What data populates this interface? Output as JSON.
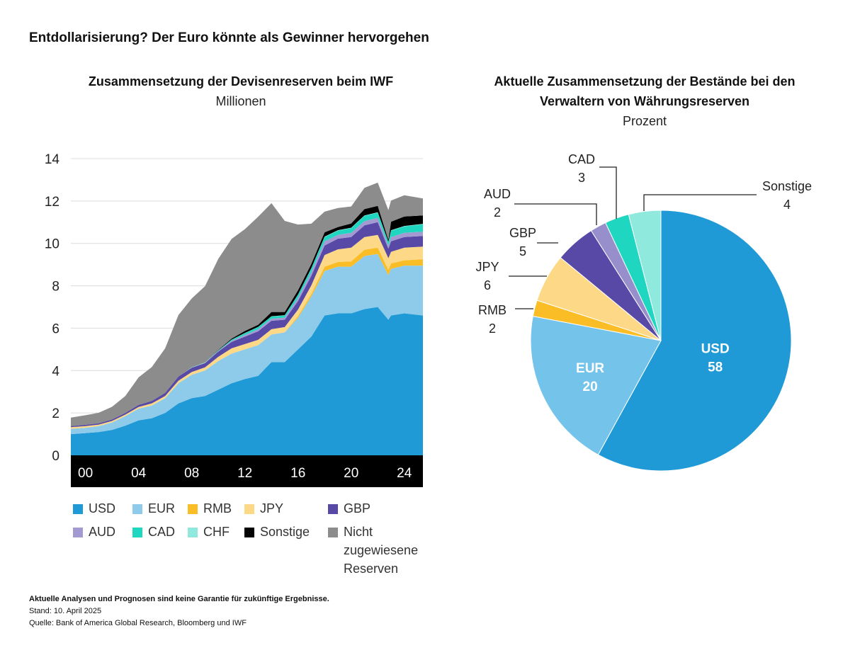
{
  "title": "Entdollarisierung? Der Euro könnte als Gewinner hervorgehen",
  "chart_data": [
    {
      "type": "area",
      "stacked": true,
      "title": "Zusammensetzung der Devisenreserven beim IWF",
      "subtitle": "Millionen",
      "ylim": [
        0,
        14
      ],
      "yticks": [
        "0",
        "2",
        "4",
        "6",
        "8",
        "10",
        "12",
        "14"
      ],
      "xlim": [
        1998.9,
        2025.4
      ],
      "xticks": [
        {
          "value": 2000,
          "label": "00"
        },
        {
          "value": 2004,
          "label": "04"
        },
        {
          "value": 2008,
          "label": "08"
        },
        {
          "value": 2012,
          "label": "12"
        },
        {
          "value": 2016,
          "label": "16"
        },
        {
          "value": 2020,
          "label": "20"
        },
        {
          "value": 2024,
          "label": "24"
        }
      ],
      "grid": true,
      "legend_position": "bottom",
      "x": [
        1999,
        2000,
        2001,
        2002,
        2003,
        2004,
        2005,
        2006,
        2007,
        2008,
        2009,
        2010,
        2011,
        2012,
        2013,
        2014,
        2015,
        2016,
        2017,
        2018,
        2019,
        2020,
        2021,
        2022,
        2022.8,
        2023,
        2024,
        2025
      ],
      "series": [
        {
          "name": "USD",
          "color": "#1f9ad6",
          "values": [
            1.0,
            1.05,
            1.1,
            1.2,
            1.4,
            1.65,
            1.75,
            2.0,
            2.45,
            2.7,
            2.8,
            3.1,
            3.4,
            3.6,
            3.75,
            4.4,
            4.4,
            5.0,
            5.6,
            6.6,
            6.7,
            6.7,
            6.9,
            7.0,
            6.4,
            6.6,
            6.7,
            6.6
          ]
        },
        {
          "name": "EUR",
          "color": "#8ecbea",
          "values": [
            0.25,
            0.25,
            0.28,
            0.35,
            0.45,
            0.55,
            0.6,
            0.7,
            0.95,
            1.1,
            1.2,
            1.35,
            1.4,
            1.4,
            1.45,
            1.3,
            1.4,
            1.5,
            1.9,
            2.1,
            2.2,
            2.2,
            2.5,
            2.5,
            2.1,
            2.2,
            2.25,
            2.35
          ]
        },
        {
          "name": "RMB",
          "color": "#fbbd26",
          "values": [
            0,
            0,
            0,
            0,
            0,
            0,
            0,
            0,
            0,
            0,
            0,
            0,
            0,
            0,
            0,
            0,
            0,
            0.08,
            0.12,
            0.2,
            0.22,
            0.25,
            0.3,
            0.3,
            0.25,
            0.25,
            0.25,
            0.3
          ]
        },
        {
          "name": "JPY",
          "color": "#fdd886",
          "values": [
            0.08,
            0.08,
            0.07,
            0.07,
            0.07,
            0.08,
            0.1,
            0.1,
            0.12,
            0.13,
            0.15,
            0.2,
            0.25,
            0.25,
            0.25,
            0.25,
            0.25,
            0.3,
            0.4,
            0.55,
            0.6,
            0.65,
            0.6,
            0.6,
            0.55,
            0.55,
            0.6,
            0.6
          ]
        },
        {
          "name": "GBP",
          "color": "#5749a5",
          "values": [
            0.05,
            0.06,
            0.06,
            0.07,
            0.08,
            0.1,
            0.12,
            0.15,
            0.2,
            0.2,
            0.2,
            0.25,
            0.3,
            0.35,
            0.4,
            0.4,
            0.35,
            0.4,
            0.45,
            0.45,
            0.5,
            0.5,
            0.55,
            0.6,
            0.45,
            0.5,
            0.5,
            0.5
          ]
        },
        {
          "name": "AUD",
          "color": "#a49ad2",
          "values": [
            0,
            0,
            0,
            0,
            0,
            0,
            0,
            0,
            0,
            0.01,
            0.01,
            0.02,
            0.05,
            0.08,
            0.1,
            0.1,
            0.1,
            0.15,
            0.17,
            0.2,
            0.18,
            0.2,
            0.2,
            0.2,
            0.15,
            0.2,
            0.2,
            0.2
          ]
        },
        {
          "name": "CAD",
          "color": "#1fd6c1",
          "values": [
            0,
            0,
            0,
            0,
            0,
            0,
            0,
            0,
            0,
            0.01,
            0.01,
            0.02,
            0.05,
            0.08,
            0.1,
            0.1,
            0.1,
            0.15,
            0.17,
            0.2,
            0.2,
            0.22,
            0.25,
            0.25,
            0.15,
            0.3,
            0.3,
            0.35
          ]
        },
        {
          "name": "CHF",
          "color": "#8fe9dd",
          "values": [
            0,
            0,
            0,
            0,
            0,
            0,
            0,
            0,
            0,
            0,
            0.01,
            0.01,
            0.01,
            0.01,
            0.01,
            0.01,
            0.01,
            0.01,
            0.02,
            0.02,
            0.02,
            0.02,
            0.02,
            0.02,
            0.02,
            0.02,
            0.02,
            0.02
          ]
        },
        {
          "name": "Sonstige",
          "color": "#000000",
          "values": [
            0,
            0,
            0,
            0,
            0,
            0,
            0,
            0,
            0,
            0,
            0,
            0.02,
            0.05,
            0.1,
            0.1,
            0.2,
            0.15,
            0.2,
            0.2,
            0.2,
            0.15,
            0.2,
            0.3,
            0.3,
            0.1,
            0.4,
            0.45,
            0.4
          ]
        },
        {
          "name": "Nicht zugewiesene Reserven",
          "color": "#8c8c8c",
          "values": [
            0.4,
            0.45,
            0.5,
            0.6,
            0.8,
            1.3,
            1.6,
            2.1,
            2.9,
            3.25,
            3.6,
            4.3,
            4.7,
            4.8,
            5.1,
            5.14,
            4.3,
            3.1,
            1.9,
            0.98,
            0.9,
            0.8,
            1.0,
            1.1,
            1.4,
            1.0,
            1.0,
            0.8
          ]
        }
      ]
    },
    {
      "type": "pie",
      "title_line1": "Aktuelle Zusammensetzung der Bestände bei den",
      "title_line2": "Verwaltern von Währungsreserven",
      "subtitle": "Prozent",
      "slices": [
        {
          "label": "USD",
          "value": 58,
          "color": "#1f9ad6"
        },
        {
          "label": "EUR",
          "value": 20,
          "color": "#74c3ea"
        },
        {
          "label": "RMB",
          "value": 2,
          "color": "#fbbd26"
        },
        {
          "label": "JPY",
          "value": 6,
          "color": "#fdd886"
        },
        {
          "label": "GBP",
          "value": 5,
          "color": "#5749a5"
        },
        {
          "label": "AUD",
          "value": 2,
          "color": "#978fcc"
        },
        {
          "label": "CAD",
          "value": 3,
          "color": "#1fd6c1"
        },
        {
          "label": "Sonstige",
          "value": 4,
          "color": "#8fe9dd"
        }
      ]
    }
  ],
  "legend": [
    {
      "label": "USD",
      "color": "#1f9ad6"
    },
    {
      "label": "EUR",
      "color": "#8ecbea"
    },
    {
      "label": "RMB",
      "color": "#fbbd26"
    },
    {
      "label": "JPY",
      "color": "#fdd886"
    },
    {
      "label": "GBP",
      "color": "#5749a5"
    },
    {
      "label": "AUD",
      "color": "#a49ad2"
    },
    {
      "label": "CAD",
      "color": "#1fd6c1"
    },
    {
      "label": "CHF",
      "color": "#8fe9dd"
    },
    {
      "label": "Sonstige",
      "color": "#000000"
    },
    {
      "label": "Nicht zugewiesene Reserven",
      "color": "#8c8c8c"
    }
  ],
  "footer": {
    "disclaimer": "Aktuelle Analysen und Prognosen sind keine Garantie für zukünftige Ergebnisse.",
    "date": "Stand: 10. April 2025",
    "source": "Quelle: Bank of America Global Research, Bloomberg und IWF"
  }
}
